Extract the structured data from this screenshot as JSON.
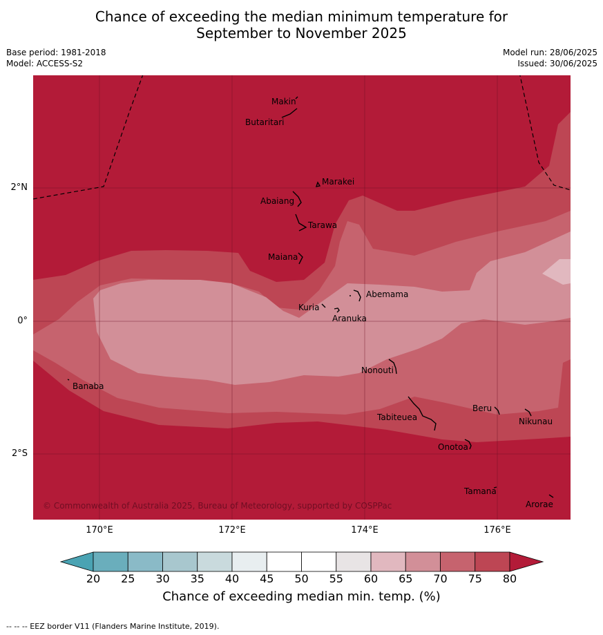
{
  "title_line1": "Chance of exceeding the median minimum temperature for",
  "title_line2": "September to November 2025",
  "meta": {
    "base_period": "Base period: 1981-2018",
    "model": "Model: ACCESS-S2",
    "model_run": "Model run: 28/06/2025",
    "issued": "Issued: 30/06/2025"
  },
  "lat_labels": [
    "2°N",
    "0°",
    "2°S"
  ],
  "lon_labels": [
    "170°E",
    "172°E",
    "174°E",
    "176°E"
  ],
  "places": [
    "Makin",
    "Butaritari",
    "Marakei",
    "Abaiang",
    "Tarawa",
    "Maiana",
    "Abemama",
    "Kuria",
    "Aranuka",
    "Nonouti",
    "Banaba",
    "Tabiteuea",
    "Beru",
    "Nikunau",
    "Onotoa",
    "Tamana",
    "Arorae"
  ],
  "copyright": "© Commonwealth of Australia 2025, Bureau of Meteorology, supported by COSPPac",
  "colorbar": {
    "ticks": [
      "20",
      "25",
      "30",
      "35",
      "40",
      "45",
      "50",
      "55",
      "60",
      "65",
      "70",
      "75",
      "80"
    ],
    "colors": [
      "#6aaebc",
      "#8abac7",
      "#a8c7ce",
      "#c9dadd",
      "#e8eef0",
      "#ffffff",
      "#ffffff",
      "#e8e4e5",
      "#e1b8bf",
      "#d28f98",
      "#c6636e",
      "#bd4654"
    ],
    "low_color": "#4aa3b3",
    "high_color": "#b31b38",
    "title": "Chance of exceeding median min. temp. (%)"
  },
  "footnote": "--  --  -- EEZ border V11 (Flanders Marine Institute, 2019)."
}
